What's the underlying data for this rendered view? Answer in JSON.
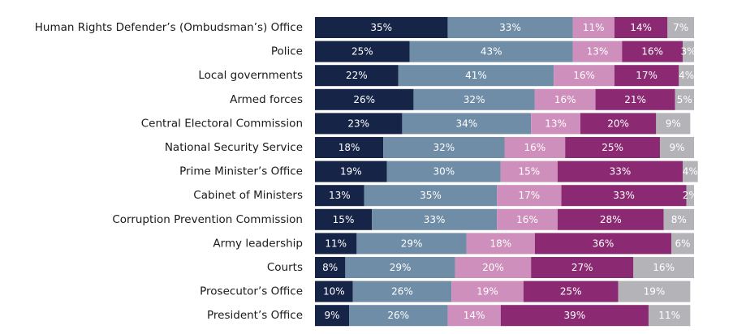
{
  "chart_data": {
    "type": "bar",
    "orientation": "horizontal",
    "stacked": true,
    "value_unit": "%",
    "xlim": [
      0,
      100
    ],
    "grid": false,
    "categories": [
      "Human Rights Defender’s (Ombudsman’s) Office",
      "Police",
      "Local governments",
      "Armed forces",
      "Central Electoral Commission",
      "National Security Service",
      "Prime Minister’s Office",
      "Cabinet of Ministers",
      "Corruption Prevention Commission",
      "Army leadership",
      "Courts",
      "Prosecutor’s Office",
      "President’s Office"
    ],
    "series": [
      {
        "color": "#162447",
        "values": [
          35,
          25,
          22,
          26,
          23,
          18,
          19,
          13,
          15,
          11,
          8,
          10,
          9
        ]
      },
      {
        "color": "#6f8da6",
        "values": [
          33,
          43,
          41,
          32,
          34,
          32,
          30,
          35,
          33,
          29,
          29,
          26,
          26
        ]
      },
      {
        "color": "#cf8fbc",
        "values": [
          11,
          13,
          16,
          16,
          13,
          16,
          15,
          17,
          16,
          18,
          20,
          19,
          14
        ]
      },
      {
        "color": "#8b2a72",
        "values": [
          14,
          16,
          17,
          21,
          20,
          25,
          33,
          33,
          28,
          36,
          27,
          25,
          39
        ]
      },
      {
        "color": "#b4b4b8",
        "values": [
          7,
          3,
          4,
          5,
          9,
          9,
          4,
          2,
          8,
          6,
          16,
          19,
          11
        ]
      }
    ]
  }
}
